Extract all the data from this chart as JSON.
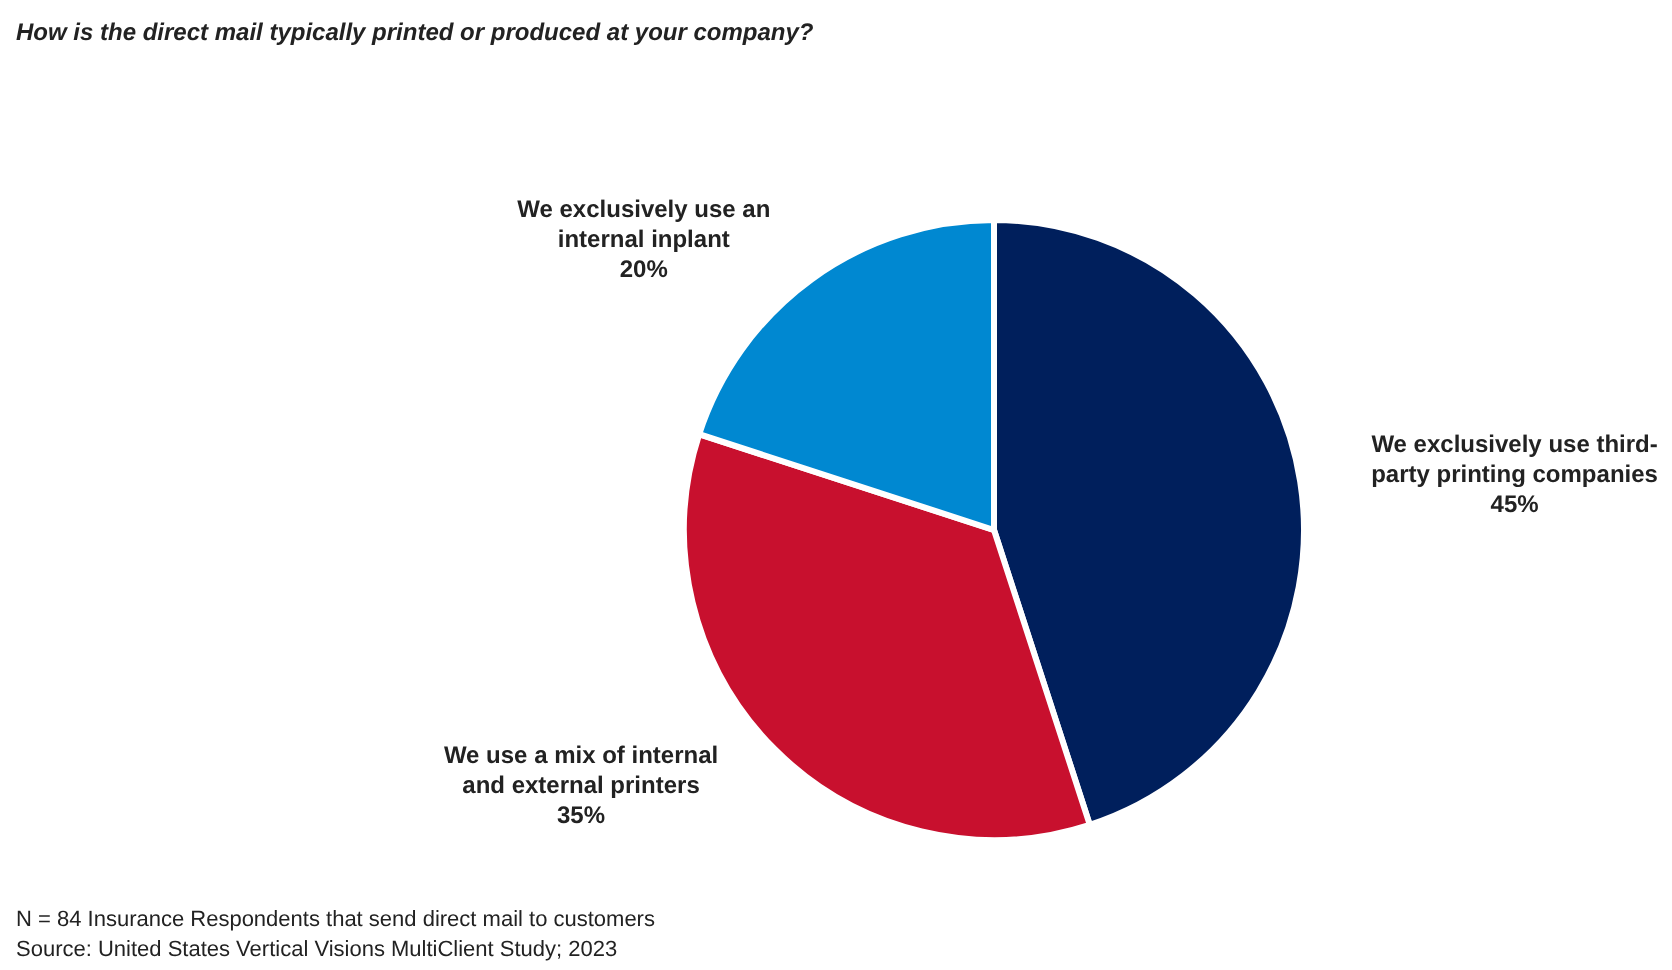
{
  "chart_data": {
    "type": "pie",
    "title": "How is the direct mail typically printed or produced at your company?",
    "categories": [
      "We exclusively use third-party printing companies",
      "We use a mix of internal and external printers",
      "We exclusively use an internal inplant"
    ],
    "values": [
      45,
      35,
      20
    ],
    "colors": [
      "#001f5c",
      "#c8102e",
      "#0088d1"
    ],
    "value_labels": [
      "45%",
      "35%",
      "20%"
    ],
    "annotations": [
      "N = 84 Insurance Respondents that send direct mail to customers",
      "Source: United States Vertical Visions MultiClient Study; 2023"
    ]
  }
}
